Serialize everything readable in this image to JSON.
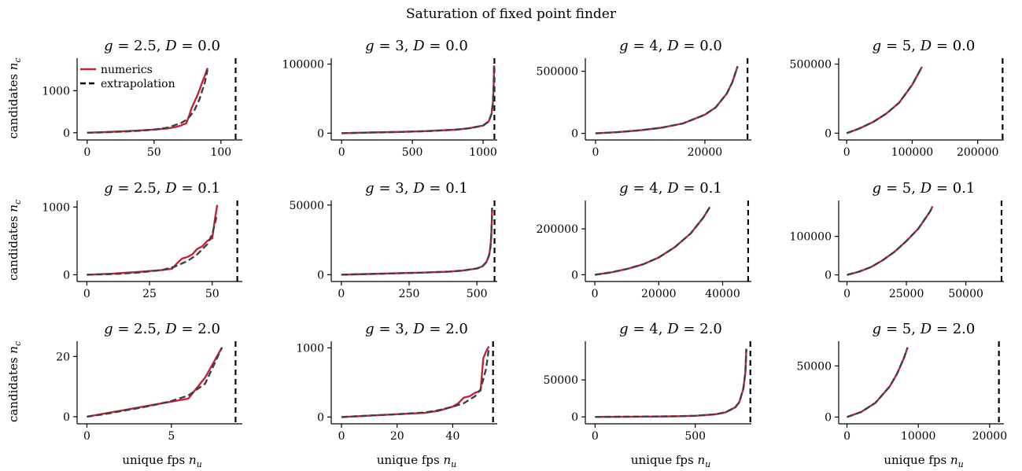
{
  "figure": {
    "suptitle": "Saturation of fixed point finder",
    "ylabel": "candidates n_c",
    "xlabel": "unique fps n_u",
    "legend": {
      "numerics": "numerics",
      "extrapolation": "extrapolation"
    },
    "colors": {
      "numerics": "#c0243c",
      "extrapolation": "#404040",
      "vline": "#000000"
    }
  },
  "chart_data": [
    {
      "type": "line",
      "title": "g = 2.5, D = 0.0",
      "g": "2.5",
      "D": "0.0",
      "xlim": [
        -4,
        116
      ],
      "ylim": [
        -60,
        1700
      ],
      "xticks": [
        0,
        50,
        100
      ],
      "yticks": [
        0,
        1000
      ],
      "vline": 111,
      "legend": true,
      "series": [
        {
          "name": "numerics",
          "x": [
            0,
            10,
            20,
            30,
            40,
            50,
            60,
            66,
            70,
            72,
            74,
            76,
            78,
            80,
            82,
            84,
            86,
            88,
            90
          ],
          "y": [
            0,
            12,
            25,
            40,
            57,
            75,
            103,
            135,
            170,
            200,
            220,
            380,
            580,
            720,
            860,
            1020,
            1200,
            1360,
            1540
          ]
        },
        {
          "name": "extrapolation",
          "x": [
            0,
            10,
            20,
            30,
            40,
            50,
            60,
            70,
            75,
            80,
            84,
            88,
            90
          ],
          "y": [
            0,
            8,
            18,
            30,
            48,
            75,
            118,
            230,
            320,
            520,
            800,
            1200,
            1500
          ]
        }
      ]
    },
    {
      "type": "line",
      "title": "g = 3, D = 0.0",
      "g": "3",
      "D": "0.0",
      "xlim": [
        -40,
        1100
      ],
      "ylim": [
        -3000,
        104000
      ],
      "xticks": [
        0,
        500,
        1000
      ],
      "yticks": [
        0,
        100000
      ],
      "vline": 1080,
      "legend": false,
      "series": [
        {
          "name": "numerics",
          "x": [
            0,
            200,
            400,
            600,
            800,
            900,
            1000,
            1040,
            1060,
            1070,
            1075,
            1078
          ],
          "y": [
            0,
            1000,
            1800,
            3000,
            5000,
            7000,
            11000,
            17000,
            28000,
            45000,
            70000,
            98000
          ]
        },
        {
          "name": "extrapolation",
          "x": [
            0,
            200,
            400,
            600,
            800,
            900,
            1000,
            1040,
            1060,
            1070,
            1075,
            1078
          ],
          "y": [
            0,
            900,
            1700,
            2900,
            5000,
            7000,
            11000,
            17000,
            28000,
            45000,
            70000,
            98000
          ]
        }
      ]
    },
    {
      "type": "line",
      "title": "g = 4, D = 0.0",
      "g": "4",
      "D": "0.0",
      "xlim": [
        -1000,
        28500
      ],
      "ylim": [
        -15000,
        580000
      ],
      "xticks": [
        0,
        20000
      ],
      "yticks": [
        0,
        500000
      ],
      "vline": 27800,
      "legend": false,
      "series": [
        {
          "name": "numerics",
          "x": [
            0,
            4000,
            8000,
            12000,
            16000,
            20000,
            22000,
            24000,
            25000,
            26000
          ],
          "y": [
            0,
            10000,
            24000,
            45000,
            80000,
            150000,
            210000,
            320000,
            410000,
            540000
          ]
        },
        {
          "name": "extrapolation",
          "x": [
            0,
            4000,
            8000,
            12000,
            16000,
            20000,
            22000,
            24000,
            25000,
            26000
          ],
          "y": [
            0,
            10000,
            24000,
            45000,
            80000,
            150000,
            210000,
            320000,
            410000,
            540000
          ]
        }
      ]
    },
    {
      "type": "line",
      "title": "g = 5, D = 0.0",
      "g": "5",
      "D": "0.0",
      "xlim": [
        -5000,
        240000
      ],
      "ylim": [
        -15000,
        520000
      ],
      "xticks": [
        0,
        100000,
        200000
      ],
      "yticks": [
        0,
        500000
      ],
      "vline": 238000,
      "legend": false,
      "series": [
        {
          "name": "numerics",
          "x": [
            0,
            20000,
            40000,
            60000,
            80000,
            100000,
            115000
          ],
          "y": [
            0,
            35000,
            80000,
            140000,
            220000,
            350000,
            480000
          ]
        },
        {
          "name": "extrapolation",
          "x": [
            0,
            20000,
            40000,
            60000,
            80000,
            100000,
            115000
          ],
          "y": [
            0,
            35000,
            80000,
            140000,
            220000,
            350000,
            480000
          ]
        }
      ]
    },
    {
      "type": "line",
      "title": "g = 2.5, D = 0.1",
      "g": "2.5",
      "D": "0.1",
      "xlim": [
        -2,
        62
      ],
      "ylim": [
        -30,
        1050
      ],
      "xticks": [
        0,
        25,
        50
      ],
      "yticks": [
        0,
        1000
      ],
      "vline": 60,
      "legend": false,
      "series": [
        {
          "name": "numerics",
          "x": [
            0,
            10,
            20,
            30,
            34,
            36,
            38,
            40,
            42,
            44,
            46,
            48,
            50,
            51,
            52
          ],
          "y": [
            0,
            15,
            40,
            70,
            90,
            170,
            240,
            260,
            300,
            380,
            420,
            500,
            540,
            800,
            1030
          ]
        },
        {
          "name": "extrapolation",
          "x": [
            0,
            10,
            20,
            30,
            35,
            40,
            44,
            48,
            50,
            52
          ],
          "y": [
            0,
            10,
            30,
            70,
            120,
            200,
            300,
            450,
            600,
            900
          ]
        }
      ]
    },
    {
      "type": "line",
      "title": "g = 3, D = 0.1",
      "g": "3",
      "D": "0.1",
      "xlim": [
        -20,
        575
      ],
      "ylim": [
        -1500,
        51000
      ],
      "xticks": [
        0,
        250,
        500
      ],
      "yticks": [
        0,
        50000
      ],
      "vline": 565,
      "legend": false,
      "series": [
        {
          "name": "numerics",
          "x": [
            0,
            100,
            200,
            300,
            400,
            450,
            500,
            520,
            535,
            545,
            550,
            553,
            555,
            556
          ],
          "y": [
            0,
            500,
            1000,
            1500,
            2200,
            3000,
            4500,
            6000,
            9000,
            14000,
            20000,
            28000,
            38000,
            48000
          ]
        },
        {
          "name": "extrapolation",
          "x": [
            0,
            100,
            200,
            300,
            400,
            450,
            500,
            520,
            535,
            545,
            550,
            553,
            555,
            556
          ],
          "y": [
            0,
            500,
            1000,
            1500,
            2200,
            3000,
            4500,
            6000,
            9000,
            14000,
            20000,
            28000,
            38000,
            48000
          ]
        }
      ]
    },
    {
      "type": "line",
      "title": "g = 4, D = 0.1",
      "g": "4",
      "D": "0.1",
      "xlim": [
        -1500,
        49000
      ],
      "ylim": [
        -9000,
        310000
      ],
      "xticks": [
        0,
        20000,
        40000
      ],
      "yticks": [
        0,
        200000
      ],
      "vline": 48000,
      "legend": false,
      "series": [
        {
          "name": "numerics",
          "x": [
            0,
            5000,
            10000,
            15000,
            20000,
            25000,
            30000,
            34000,
            36000
          ],
          "y": [
            0,
            10000,
            25000,
            45000,
            75000,
            120000,
            180000,
            250000,
            295000
          ]
        },
        {
          "name": "extrapolation",
          "x": [
            0,
            5000,
            10000,
            15000,
            20000,
            25000,
            30000,
            34000,
            36000
          ],
          "y": [
            0,
            10000,
            25000,
            45000,
            75000,
            120000,
            180000,
            250000,
            295000
          ]
        }
      ]
    },
    {
      "type": "line",
      "title": "g = 5, D = 0.1",
      "g": "5",
      "D": "0.1",
      "xlim": [
        -1500,
        66000
      ],
      "ylim": [
        -5000,
        185000
      ],
      "xticks": [
        0,
        25000,
        50000
      ],
      "yticks": [
        0,
        100000
      ],
      "vline": 65000,
      "legend": false,
      "series": [
        {
          "name": "numerics",
          "x": [
            0,
            5000,
            10000,
            15000,
            20000,
            25000,
            30000,
            35000,
            36000
          ],
          "y": [
            0,
            8000,
            20000,
            38000,
            60000,
            88000,
            120000,
            165000,
            178000
          ]
        },
        {
          "name": "extrapolation",
          "x": [
            0,
            5000,
            10000,
            15000,
            20000,
            25000,
            30000,
            35000,
            36000
          ],
          "y": [
            0,
            8000,
            20000,
            38000,
            60000,
            88000,
            120000,
            165000,
            178000
          ]
        }
      ]
    },
    {
      "type": "line",
      "title": "g = 2.5, D = 2.0",
      "g": "2.5",
      "D": "2.0",
      "xlim": [
        -0.3,
        9.2
      ],
      "ylim": [
        -0.8,
        24
      ],
      "xticks": [
        0,
        5
      ],
      "yticks": [
        0,
        20
      ],
      "vline": 8.8,
      "legend": false,
      "series": [
        {
          "name": "numerics",
          "x": [
            0,
            1,
            2,
            3,
            4,
            5,
            6,
            7,
            8
          ],
          "y": [
            0,
            1,
            2,
            3,
            4,
            5,
            6,
            13,
            23
          ]
        },
        {
          "name": "extrapolation",
          "x": [
            0,
            1,
            2,
            3,
            4,
            5,
            6,
            7,
            8
          ],
          "y": [
            0,
            0.8,
            1.8,
            2.8,
            3.9,
            5.2,
            7,
            11,
            23
          ]
        }
      ]
    },
    {
      "type": "line",
      "title": "g = 3, D = 2.0",
      "g": "3",
      "D": "2.0",
      "xlim": [
        -2,
        56
      ],
      "ylim": [
        -30,
        1050
      ],
      "xticks": [
        0,
        20,
        40
      ],
      "yticks": [
        0,
        1000
      ],
      "vline": 54.5,
      "legend": false,
      "series": [
        {
          "name": "numerics",
          "x": [
            0,
            10,
            20,
            30,
            35,
            40,
            42,
            44,
            46,
            48,
            50,
            51,
            52,
            53
          ],
          "y": [
            0,
            20,
            40,
            60,
            90,
            150,
            200,
            280,
            300,
            350,
            380,
            850,
            950,
            1020
          ]
        },
        {
          "name": "extrapolation",
          "x": [
            0,
            10,
            20,
            30,
            35,
            40,
            44,
            48,
            50,
            52,
            53
          ],
          "y": [
            0,
            20,
            40,
            65,
            100,
            150,
            200,
            300,
            400,
            700,
            1000
          ]
        }
      ]
    },
    {
      "type": "line",
      "title": "g = 4, D = 2.0",
      "g": "4",
      "D": "2.0",
      "xlim": [
        -25,
        780
      ],
      "ylim": [
        -3000,
        98000
      ],
      "xticks": [
        0,
        500
      ],
      "yticks": [
        0,
        50000
      ],
      "vline": 775,
      "legend": false,
      "series": [
        {
          "name": "numerics",
          "x": [
            0,
            200,
            400,
            500,
            600,
            650,
            700,
            720,
            740,
            750,
            755
          ],
          "y": [
            0,
            300,
            800,
            1500,
            3500,
            6000,
            13000,
            20000,
            38000,
            60000,
            92000
          ]
        },
        {
          "name": "extrapolation",
          "x": [
            0,
            200,
            400,
            500,
            600,
            650,
            700,
            720,
            740,
            750,
            755
          ],
          "y": [
            0,
            300,
            800,
            1500,
            3500,
            6000,
            13000,
            20000,
            38000,
            60000,
            92000
          ]
        }
      ]
    },
    {
      "type": "line",
      "title": "g = 5, D = 2.0",
      "g": "5",
      "D": "2.0",
      "xlim": [
        -500,
        22000
      ],
      "ylim": [
        -2000,
        71000
      ],
      "xticks": [
        0,
        10000,
        20000
      ],
      "yticks": [
        0,
        50000
      ],
      "vline": 21300,
      "legend": false,
      "series": [
        {
          "name": "numerics",
          "x": [
            0,
            2000,
            4000,
            6000,
            7000,
            8000,
            8500
          ],
          "y": [
            0,
            5000,
            14000,
            30000,
            42000,
            58000,
            68000
          ]
        },
        {
          "name": "extrapolation",
          "x": [
            0,
            2000,
            4000,
            6000,
            7000,
            8000,
            8500
          ],
          "y": [
            0,
            5000,
            14000,
            30000,
            42000,
            58000,
            68000
          ]
        }
      ]
    }
  ]
}
